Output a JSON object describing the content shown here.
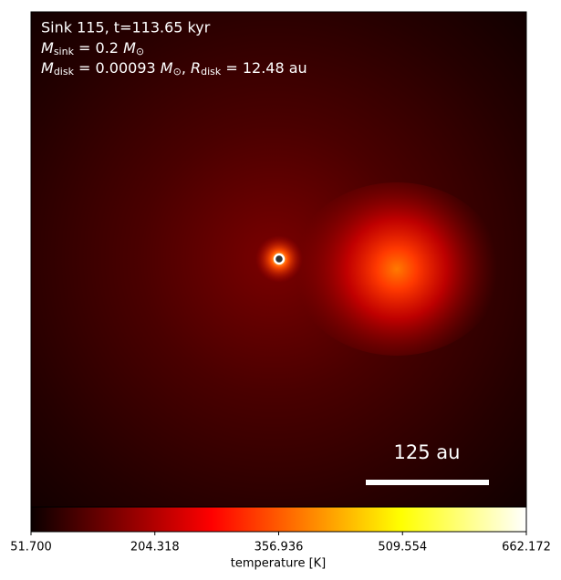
{
  "chart_data": {
    "type": "image",
    "annotations": {
      "line1": "Sink 115, t=113.65 kyr",
      "line2": [
        "M",
        "sink",
        " = 0.2 ",
        "M",
        "⊙"
      ],
      "line3": [
        "M",
        "disk",
        " = 0.00093 ",
        "M",
        "⊙",
        ", ",
        "R",
        "disk",
        " = 12.48 au"
      ],
      "scale_bar": "125 au"
    },
    "colorbar": {
      "label": "temperature [K]",
      "colormap": "hot",
      "clim": [
        51.7,
        662.172
      ],
      "ticks": [
        {
          "value": 51.7,
          "label": "51.700"
        },
        {
          "value": 204.318,
          "label": "204.318"
        },
        {
          "value": 356.936,
          "label": "356.936"
        },
        {
          "value": 509.554,
          "label": "509.554"
        },
        {
          "value": 662.172,
          "label": "662.172"
        }
      ]
    }
  }
}
